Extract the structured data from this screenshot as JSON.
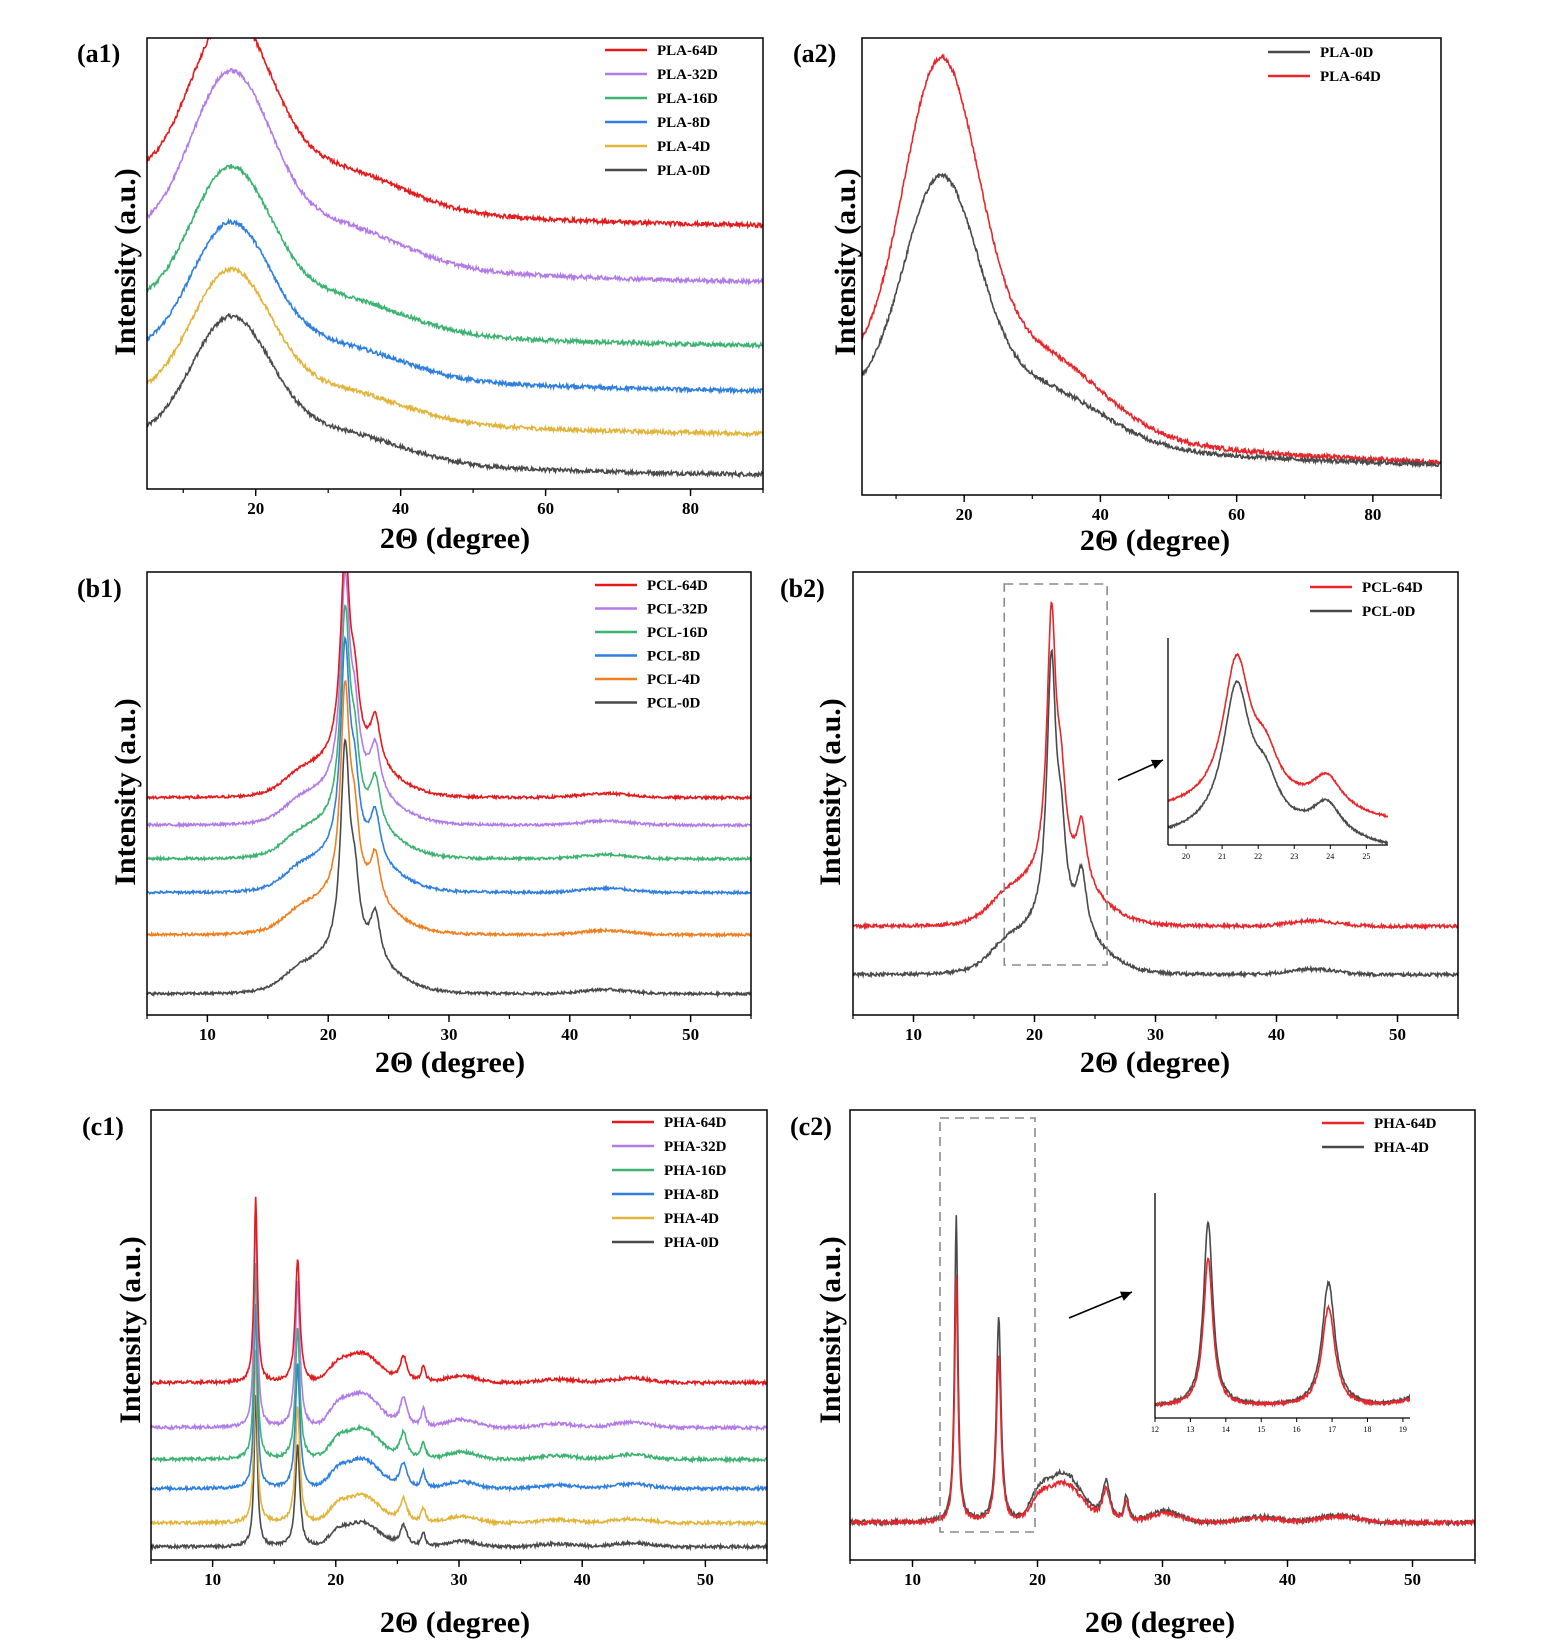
{
  "chart_data": [
    {
      "id": "a1",
      "type": "line",
      "panel_label": "(a1)",
      "xlabel": "2Θ (degree)",
      "ylabel": "Intensity (a.u.)",
      "xlim": [
        5,
        90
      ],
      "xticks": [
        20,
        40,
        60,
        80
      ],
      "yticks_shown": false,
      "legend": "top-right",
      "profile": "pla",
      "series": [
        {
          "name": "PLA-64D",
          "color": "#e41a1c",
          "offset": 1.1,
          "scale": 1.0
        },
        {
          "name": "PLA-32D",
          "color": "#b27be8",
          "offset": 0.85,
          "scale": 1.0
        },
        {
          "name": "PLA-16D",
          "color": "#3cb371",
          "offset": 0.57,
          "scale": 0.85
        },
        {
          "name": "PLA-8D",
          "color": "#2f7fe0",
          "offset": 0.37,
          "scale": 0.8
        },
        {
          "name": "PLA-4D",
          "color": "#e3b43a",
          "offset": 0.18,
          "scale": 0.78
        },
        {
          "name": "PLA-0D",
          "color": "#4a4a4a",
          "offset": 0.0,
          "scale": 0.75
        }
      ]
    },
    {
      "id": "a2",
      "type": "line",
      "panel_label": "(a2)",
      "xlabel": "2Θ (degree)",
      "ylabel": "Intensity (a.u.)",
      "xlim": [
        5,
        90
      ],
      "xticks": [
        20,
        40,
        60,
        80
      ],
      "yticks_shown": false,
      "legend": "top-right",
      "profile": "pla",
      "series": [
        {
          "name": "PLA-0D",
          "color": "#4a4a4a",
          "offset": 0.0,
          "scale": 1.25
        },
        {
          "name": "PLA-64D",
          "color": "#e8262b",
          "offset": 0.0,
          "scale": 1.75
        }
      ],
      "draw_order": [
        "PLA-64D",
        "PLA-0D"
      ]
    },
    {
      "id": "b1",
      "type": "line",
      "panel_label": "(b1)",
      "xlabel": "2Θ (degree)",
      "ylabel": "Intensity (a.u.)",
      "xlim": [
        5,
        55
      ],
      "xticks": [
        10,
        20,
        30,
        40,
        50
      ],
      "yticks_shown": false,
      "legend": "top-right",
      "profile": "pcl",
      "series": [
        {
          "name": "PCL-64D",
          "color": "#e41a1c",
          "offset": 0.93,
          "scale": 1.0
        },
        {
          "name": "PCL-32D",
          "color": "#b27be8",
          "offset": 0.8,
          "scale": 1.0
        },
        {
          "name": "PCL-16D",
          "color": "#3cb371",
          "offset": 0.64,
          "scale": 1.0
        },
        {
          "name": "PCL-8D",
          "color": "#2f7fe0",
          "offset": 0.48,
          "scale": 1.0
        },
        {
          "name": "PCL-4D",
          "color": "#f07f1e",
          "offset": 0.28,
          "scale": 1.0
        },
        {
          "name": "PCL-0D",
          "color": "#4a4a4a",
          "offset": 0.0,
          "scale": 1.0
        }
      ]
    },
    {
      "id": "b2",
      "type": "line",
      "panel_label": "(b2)",
      "xlabel": "2Θ (degree)",
      "ylabel": "Intensity (a.u.)",
      "xlim": [
        5,
        55
      ],
      "xticks": [
        10,
        20,
        30,
        40,
        50
      ],
      "yticks_shown": false,
      "legend": "top-right",
      "profile": "pcl",
      "series": [
        {
          "name": "PCL-64D",
          "color": "#e8262b",
          "offset": 0.18,
          "scale": 1.0
        },
        {
          "name": "PCL-0D",
          "color": "#4a4a4a",
          "offset": 0.0,
          "scale": 1.0
        }
      ],
      "highlight_box_x": [
        17.5,
        26
      ],
      "inset": {
        "xlim": [
          19.5,
          25.6
        ],
        "xticks": [
          20,
          21,
          22,
          23,
          24,
          25
        ]
      }
    },
    {
      "id": "c1",
      "type": "line",
      "panel_label": "(c1)",
      "xlabel": "2Θ (degree)",
      "ylabel": "Intensity (a.u.)",
      "xlim": [
        5,
        55
      ],
      "xticks": [
        10,
        20,
        30,
        40,
        50
      ],
      "yticks_shown": false,
      "legend": "top-right",
      "profile": "pha",
      "series": [
        {
          "name": "PHA-64D",
          "color": "#e41a1c",
          "offset": 0.62,
          "scale": 0.85
        },
        {
          "name": "PHA-32D",
          "color": "#b27be8",
          "offset": 0.45,
          "scale": 1.0
        },
        {
          "name": "PHA-16D",
          "color": "#3cb371",
          "offset": 0.33,
          "scale": 0.9
        },
        {
          "name": "PHA-8D",
          "color": "#2f7fe0",
          "offset": 0.22,
          "scale": 0.85
        },
        {
          "name": "PHA-4D",
          "color": "#e3b43a",
          "offset": 0.09,
          "scale": 0.8
        },
        {
          "name": "PHA-0D",
          "color": "#4a4a4a",
          "offset": 0.0,
          "scale": 0.7
        }
      ]
    },
    {
      "id": "c2",
      "type": "line",
      "panel_label": "(c2)",
      "xlabel": "2Θ (degree)",
      "ylabel": "Intensity (a.u.)",
      "xlim": [
        5,
        55
      ],
      "xticks": [
        10,
        20,
        30,
        40,
        50
      ],
      "yticks_shown": false,
      "legend": "top-right",
      "profile": "pha",
      "series": [
        {
          "name": "PHA-64D",
          "color": "#e8262b",
          "offset": 0.0,
          "scale": 0.8
        },
        {
          "name": "PHA-4D",
          "color": "#4a4a4a",
          "offset": 0.0,
          "scale": 1.0
        }
      ],
      "draw_order": [
        "PHA-4D",
        "PHA-64D"
      ],
      "highlight_box_x": [
        12.2,
        19.8
      ],
      "inset": {
        "xlim": [
          12,
          19.2
        ],
        "xticks": [
          12,
          13,
          14,
          15,
          16,
          17,
          18,
          19
        ]
      }
    }
  ]
}
